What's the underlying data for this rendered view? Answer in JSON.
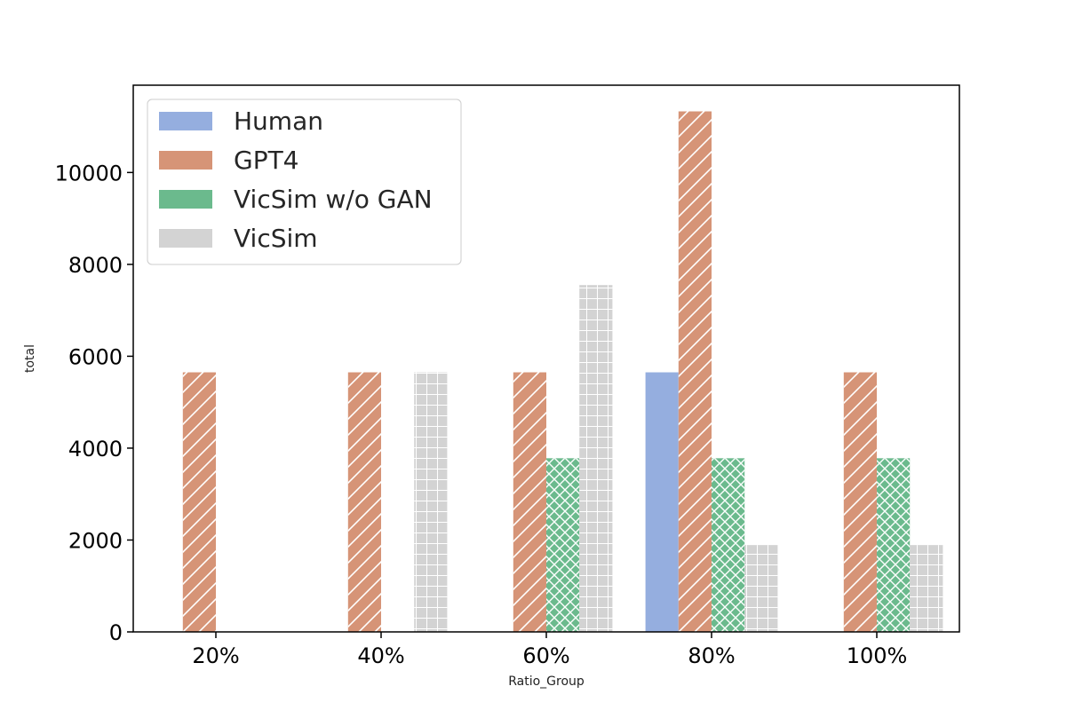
{
  "chart_data": {
    "type": "bar",
    "title": "",
    "xlabel": "Ratio_Group",
    "ylabel": "total",
    "categories": [
      "20%",
      "40%",
      "60%",
      "80%",
      "100%"
    ],
    "ylim": [
      0,
      11900
    ],
    "yticks": [
      0,
      2000,
      4000,
      6000,
      8000,
      10000
    ],
    "ytick_labels": [
      "0",
      "2000",
      "4000",
      "6000",
      "8000",
      "10000"
    ],
    "grid": false,
    "legend_position": "top-left",
    "series": [
      {
        "name": "Human",
        "color": "#95aedf",
        "hatch": "none",
        "values": [
          0,
          0,
          0,
          5650,
          0
        ]
      },
      {
        "name": "GPT4",
        "color": "#d69477",
        "hatch": "diagonal",
        "values": [
          5650,
          5650,
          5650,
          11330,
          5650
        ]
      },
      {
        "name": "VicSim w/o GAN",
        "color": "#6bba8d",
        "hatch": "crosshatch",
        "values": [
          0,
          0,
          3780,
          3780,
          3780
        ]
      },
      {
        "name": "VicSim",
        "color": "#d3d3d3",
        "hatch": "grid",
        "values": [
          0,
          5650,
          7550,
          1890,
          1890
        ]
      }
    ]
  }
}
